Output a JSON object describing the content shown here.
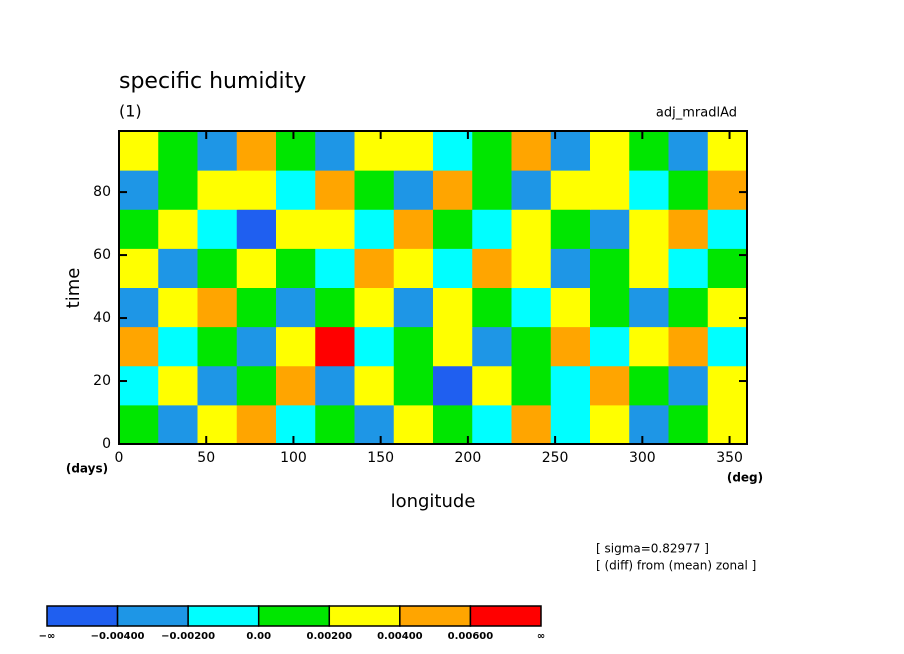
{
  "chart_data": {
    "type": "heatmap",
    "title": "specific humidity",
    "subtitle": "(1)",
    "label_right": "adj_mradlAd",
    "ylabel": "time",
    "yunit": "(days)",
    "xlabel": "longitude",
    "xunit": "(deg)",
    "notes": [
      "[ sigma=0.82977 ]",
      "[ (diff) from (mean) zonal ]"
    ],
    "xlim": [
      0,
      360
    ],
    "xticks": [
      0,
      50,
      100,
      150,
      200,
      250,
      300,
      350
    ],
    "ylim": [
      0,
      99.4
    ],
    "yticks": [
      0,
      20,
      40,
      60,
      80
    ],
    "z": [
      [
        0.001,
        -0.003,
        0.002,
        0.005,
        -0.001,
        0.0,
        -0.004,
        0.003,
        0.001,
        -0.002,
        0.004,
        -0.001,
        0.002,
        -0.003,
        0.001,
        0.003
      ],
      [
        -0.002,
        0.003,
        -0.004,
        0.001,
        0.004,
        -0.003,
        0.002,
        0.0,
        -0.005,
        0.003,
        0.001,
        -0.002,
        0.005,
        0.0,
        -0.003,
        0.002
      ],
      [
        0.004,
        -0.001,
        0.001,
        -0.003,
        0.002,
        0.006,
        -0.002,
        0.001,
        0.003,
        -0.004,
        0.0,
        0.004,
        -0.001,
        0.002,
        0.004,
        -0.002
      ],
      [
        -0.003,
        0.002,
        0.005,
        0.0,
        -0.004,
        0.001,
        0.003,
        -0.003,
        0.002,
        0.001,
        -0.002,
        0.003,
        0.0,
        -0.004,
        0.001,
        0.003
      ],
      [
        0.002,
        -0.004,
        0.0,
        0.003,
        0.001,
        -0.002,
        0.004,
        0.002,
        -0.001,
        0.005,
        0.002,
        -0.003,
        0.001,
        0.003,
        -0.002,
        0.0
      ],
      [
        0.0,
        0.003,
        -0.002,
        -0.005,
        0.003,
        0.002,
        -0.001,
        0.004,
        0.0,
        -0.002,
        0.003,
        0.001,
        -0.004,
        0.002,
        0.005,
        -0.001
      ],
      [
        -0.004,
        0.001,
        0.003,
        0.002,
        -0.002,
        0.004,
        0.001,
        -0.003,
        0.005,
        0.001,
        -0.003,
        0.002,
        0.003,
        -0.001,
        0.0,
        0.004
      ],
      [
        0.003,
        0.0,
        -0.003,
        0.004,
        0.001,
        -0.003,
        0.002,
        0.003,
        -0.002,
        0.0,
        0.004,
        -0.004,
        0.002,
        0.001,
        -0.003,
        0.002
      ]
    ],
    "colorbar": {
      "colors": [
        "#1f5ff0",
        "#1e96e6",
        "#00ffff",
        "#00e600",
        "#ffff00",
        "#ffa500",
        "#ff0000"
      ],
      "boundaries": [
        {
          "label": "−∞"
        },
        {
          "value": -0.004,
          "label": "−0.00400"
        },
        {
          "value": -0.002,
          "label": "−0.00200"
        },
        {
          "value": 0,
          "label": "0.00"
        },
        {
          "value": 0.002,
          "label": "0.00200"
        },
        {
          "value": 0.004,
          "label": "0.00400"
        },
        {
          "value": 0.006,
          "label": "0.00600"
        },
        {
          "label": "∞"
        }
      ]
    }
  }
}
